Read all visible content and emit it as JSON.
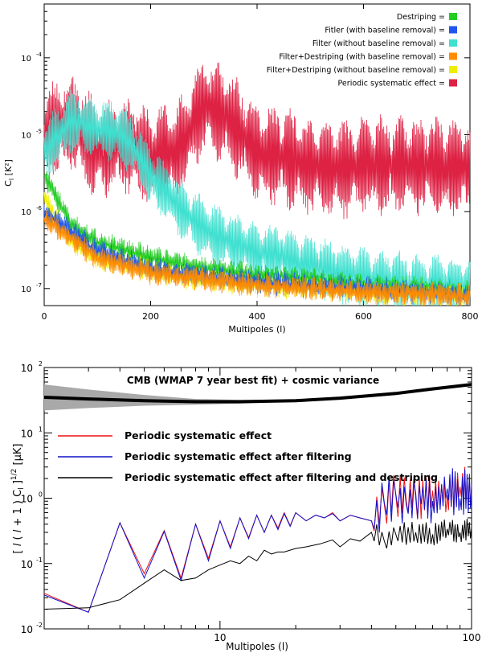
{
  "chart_data": [
    {
      "type": "line",
      "xlabel": "Multipoles (l)",
      "ylabel": "C_l [K²]",
      "ylabel_base": "C",
      "ylabel_sub": "l",
      "ylabel_rest": " [K²]",
      "xlim": [
        0,
        800
      ],
      "ylim": [
        6e-08,
        0.0005
      ],
      "yscale": "log",
      "x_ticks": [
        "0",
        "200",
        "400",
        "600",
        "800"
      ],
      "y_ticks": [
        {
          "value": 1e-07,
          "label": "10",
          "exp": "-7"
        },
        {
          "value": 1e-06,
          "label": "10",
          "exp": "-6"
        },
        {
          "value": 1e-05,
          "label": "10",
          "exp": "-5"
        },
        {
          "value": 0.0001,
          "label": "10",
          "exp": "-4"
        }
      ],
      "legend_position": "top-right",
      "series": [
        {
          "name": "Destriping",
          "color": "#22cc22",
          "x": [
            0,
            50,
            100,
            200,
            300,
            400,
            500,
            600,
            700,
            800
          ],
          "y": [
            3e-06,
            7e-07,
            4e-07,
            2.5e-07,
            1.8e-07,
            1.5e-07,
            1.3e-07,
            1.1e-07,
            1e-07,
            9e-08
          ]
        },
        {
          "name": "Fitler (with baseline removal)",
          "color": "#2255ee",
          "x": [
            0,
            100,
            200,
            400,
            600,
            800
          ],
          "y": [
            1e-06,
            3e-07,
            1.8e-07,
            1.2e-07,
            1e-07,
            8e-08
          ]
        },
        {
          "name": "Filter (without baseline removal)",
          "color": "#40e0d0",
          "x": [
            0,
            50,
            100,
            150,
            200,
            250,
            300,
            350,
            400,
            450,
            500,
            550,
            600,
            700,
            800
          ],
          "y": [
            6e-06,
            1.5e-05,
            1.2e-05,
            1e-05,
            3e-06,
            1.2e-06,
            6e-07,
            4e-07,
            3e-07,
            2.5e-07,
            2e-07,
            1.6e-07,
            1.4e-07,
            1.1e-07,
            1e-07
          ]
        },
        {
          "name": "Filter+Destriping (with baseline removal)",
          "color": "#ff8c00",
          "x": [
            0,
            100,
            200,
            400,
            600,
            800
          ],
          "y": [
            8e-07,
            2.5e-07,
            1.6e-07,
            1.1e-07,
            9e-08,
            8e-08
          ]
        },
        {
          "name": "Filter+Destriping (without baseline removal)",
          "color": "#eeee00",
          "x": [
            0,
            50,
            100,
            200,
            300,
            400,
            500,
            600,
            700,
            800
          ],
          "y": [
            1.5e-06,
            4e-07,
            2.5e-07,
            1.7e-07,
            1.3e-07,
            1.1e-07,
            1e-07,
            9e-08,
            8.5e-08,
            8e-08
          ]
        },
        {
          "name": "Periodic systematic effect",
          "color": "#dd2244",
          "x": [
            0,
            50,
            100,
            150,
            200,
            250,
            300,
            350,
            400,
            450,
            500,
            550,
            600,
            700,
            800
          ],
          "y": [
            1e-05,
            1.5e-05,
            6e-06,
            8e-06,
            5e-06,
            6e-06,
            2.5e-05,
            1.5e-05,
            6e-06,
            5e-06,
            4e-06,
            3.5e-06,
            4e-06,
            4e-06,
            3.5e-06
          ]
        }
      ]
    },
    {
      "type": "line",
      "xlabel": "Multipoles (l)",
      "ylabel": "[ l ( l + 1 ) C_l ]^1/2 [μK]",
      "xscale": "log",
      "yscale": "log",
      "xlim": [
        2,
        100
      ],
      "ylim": [
        0.01,
        100
      ],
      "x_ticks": [
        "10",
        "100"
      ],
      "y_ticks": [
        {
          "value": 0.01,
          "label": "10",
          "exp": "-2"
        },
        {
          "value": 0.1,
          "label": "10",
          "exp": "-1"
        },
        {
          "value": 1,
          "label": "10",
          "exp": "0"
        },
        {
          "value": 10,
          "label": "10",
          "exp": "1"
        },
        {
          "value": 100,
          "label": "10",
          "exp": "2"
        }
      ],
      "annotation": "CMB (WMAP 7 year best fit) + cosmic variance",
      "legend_position": "left",
      "band": {
        "x": [
          2,
          3,
          5,
          8,
          12,
          20,
          30,
          50,
          70,
          100
        ],
        "y": [
          35,
          33,
          31,
          30,
          30,
          31,
          34,
          40,
          47,
          55
        ],
        "lo": [
          22,
          24,
          26,
          27,
          28,
          30,
          33,
          39,
          46,
          54
        ],
        "hi": [
          55,
          46,
          38,
          33,
          32,
          32,
          35,
          41,
          48,
          56
        ]
      },
      "series": [
        {
          "name": "Periodic systematic effect",
          "color": "#ee1111",
          "x": [
            2,
            3,
            4,
            5,
            6,
            7,
            8,
            9,
            10,
            11,
            12,
            13,
            14,
            15,
            16,
            17,
            18,
            19,
            20,
            22,
            24,
            26,
            28,
            30,
            33,
            36,
            40,
            45,
            50,
            55,
            60,
            70,
            80,
            90,
            100
          ],
          "y": [
            0.035,
            0.018,
            0.42,
            0.07,
            0.32,
            0.06,
            0.4,
            0.12,
            0.45,
            0.18,
            0.5,
            0.25,
            0.55,
            0.3,
            0.55,
            0.35,
            0.6,
            0.38,
            0.6,
            0.45,
            0.55,
            0.5,
            0.6,
            0.45,
            0.55,
            0.5,
            0.45,
            0.8,
            1.1,
            0.9,
            1.0,
            1.3,
            1.1,
            1.5,
            1.2
          ]
        },
        {
          "name": "Periodic systematic effect after filtering",
          "color": "#1111cc",
          "x": [
            2,
            3,
            4,
            5,
            6,
            7,
            8,
            9,
            10,
            11,
            12,
            13,
            14,
            15,
            16,
            17,
            18,
            19,
            20,
            22,
            24,
            26,
            28,
            30,
            33,
            36,
            40,
            45,
            50,
            55,
            60,
            70,
            80,
            90,
            100
          ],
          "y": [
            0.033,
            0.018,
            0.42,
            0.06,
            0.31,
            0.055,
            0.4,
            0.11,
            0.45,
            0.17,
            0.5,
            0.24,
            0.55,
            0.3,
            0.55,
            0.33,
            0.58,
            0.37,
            0.6,
            0.45,
            0.55,
            0.5,
            0.58,
            0.45,
            0.55,
            0.5,
            0.45,
            0.85,
            1.15,
            0.8,
            1.2,
            0.9,
            1.4,
            1.0,
            1.6
          ]
        },
        {
          "name": "Periodic systematic effect after filtering and destriping",
          "color": "#000000",
          "x": [
            2,
            3,
            4,
            5,
            6,
            7,
            8,
            9,
            10,
            11,
            12,
            13,
            14,
            15,
            16,
            17,
            18,
            20,
            22,
            25,
            28,
            30,
            33,
            36,
            40,
            45,
            50,
            60,
            70,
            80,
            90,
            100
          ],
          "y": [
            0.02,
            0.021,
            0.028,
            0.05,
            0.08,
            0.055,
            0.06,
            0.08,
            0.095,
            0.11,
            0.1,
            0.13,
            0.11,
            0.16,
            0.14,
            0.15,
            0.15,
            0.17,
            0.18,
            0.2,
            0.23,
            0.18,
            0.24,
            0.22,
            0.3,
            0.22,
            0.28,
            0.3,
            0.28,
            0.34,
            0.3,
            0.35
          ]
        }
      ]
    }
  ]
}
